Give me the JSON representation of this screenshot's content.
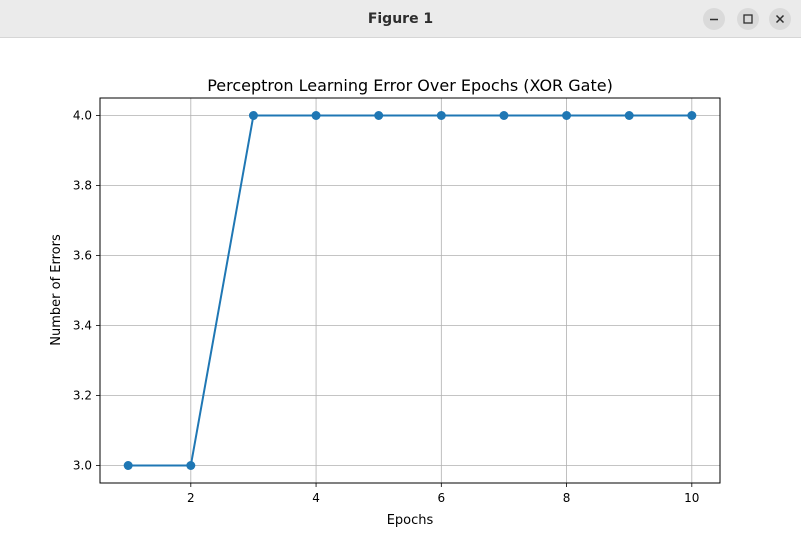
{
  "window": {
    "title": "Figure 1",
    "controls": [
      "minimize-icon",
      "maximize-icon",
      "close-icon"
    ]
  },
  "chart_data": {
    "type": "line",
    "title": "Perceptron Learning Error Over Epochs (XOR Gate)",
    "xlabel": "Epochs",
    "ylabel": "Number of Errors",
    "x": [
      1,
      2,
      3,
      4,
      5,
      6,
      7,
      8,
      9,
      10
    ],
    "series": [
      {
        "values": [
          3.0,
          3.0,
          4.0,
          4.0,
          4.0,
          4.0,
          4.0,
          4.0,
          4.0,
          4.0
        ],
        "color": "#1f77b4",
        "marker": "circle"
      }
    ],
    "xticks": [
      2,
      4,
      6,
      8,
      10
    ],
    "yticks": [
      3.0,
      3.2,
      3.4,
      3.6,
      3.8,
      4.0
    ],
    "xtick_labels": [
      "2",
      "4",
      "6",
      "8",
      "10"
    ],
    "ytick_labels": [
      "3.0",
      "3.2",
      "3.4",
      "3.6",
      "3.8",
      "4.0"
    ],
    "xlim": [
      0.55,
      10.45
    ],
    "ylim": [
      2.95,
      4.05
    ],
    "grid": true
  }
}
